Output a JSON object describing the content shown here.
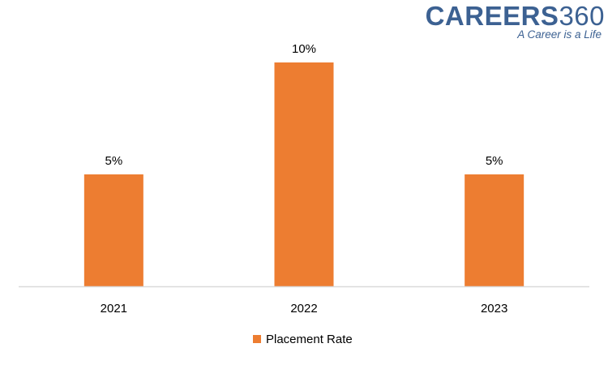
{
  "logo": {
    "brand": "CAREERS",
    "brand_number": "360",
    "tagline": "A Career is a Life"
  },
  "chart_data": {
    "type": "bar",
    "categories": [
      "2021",
      "2022",
      "2023"
    ],
    "series": [
      {
        "name": "Placement Rate",
        "values": [
          5,
          10,
          5
        ],
        "labels": [
          "5%",
          "10%",
          "5%"
        ],
        "color": "#ed7d31"
      }
    ],
    "ylim": [
      0,
      10
    ],
    "grid": false,
    "legend": "bottom",
    "axis_color": "#d9d9d9",
    "text_color": "#000000"
  }
}
